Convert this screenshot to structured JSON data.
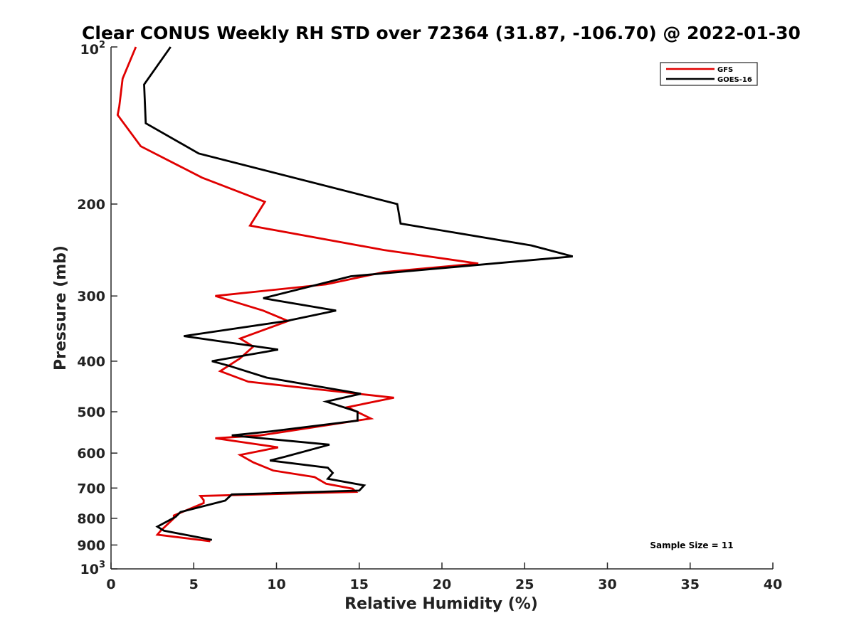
{
  "chart_data": {
    "type": "line",
    "title": "Clear CONUS Weekly RH STD over 72364 (31.87, -106.70) @ 2022-01-30",
    "xlabel": "Relative Humidity (%)",
    "ylabel": "Pressure (mb)",
    "xlim": [
      0,
      40
    ],
    "ylim": [
      100,
      1000
    ],
    "y_scale": "log",
    "y_reversed": true,
    "x_ticks": [
      0,
      5,
      10,
      15,
      20,
      25,
      30,
      35,
      40
    ],
    "x_tick_labels": [
      "0",
      "5",
      "10",
      "15",
      "20",
      "25",
      "30",
      "35",
      "40"
    ],
    "y_ticks": [
      200,
      300,
      400,
      500,
      600,
      700,
      800,
      900
    ],
    "y_tick_labels": [
      "200",
      "300",
      "400",
      "500",
      "600",
      "700",
      "800",
      "900"
    ],
    "y_tick_top": {
      "base": "10",
      "exp": "2"
    },
    "y_tick_bottom": {
      "base": "10",
      "exp": "3"
    },
    "grid": false,
    "legend_position": "top-right",
    "annotation": "Sample Size = 11",
    "series": [
      {
        "name": "GFS",
        "color": "#e00000",
        "points": [
          [
            1.5,
            100
          ],
          [
            0.7,
            115
          ],
          [
            0.5,
            130
          ],
          [
            0.4,
            135
          ],
          [
            1.8,
            155
          ],
          [
            5.5,
            178
          ],
          [
            9.3,
            198
          ],
          [
            8.4,
            220
          ],
          [
            16.5,
            245
          ],
          [
            22.2,
            260
          ],
          [
            16.5,
            270
          ],
          [
            13.0,
            285
          ],
          [
            6.3,
            300
          ],
          [
            9.2,
            320
          ],
          [
            10.7,
            335
          ],
          [
            7.8,
            362
          ],
          [
            8.6,
            375
          ],
          [
            7.8,
            395
          ],
          [
            6.6,
            418
          ],
          [
            8.3,
            438
          ],
          [
            17.1,
            470
          ],
          [
            14.3,
            490
          ],
          [
            15.7,
            515
          ],
          [
            9.0,
            555
          ],
          [
            6.3,
            562
          ],
          [
            10.1,
            585
          ],
          [
            7.8,
            605
          ],
          [
            8.6,
            625
          ],
          [
            9.8,
            648
          ],
          [
            12.3,
            667
          ],
          [
            13.0,
            687
          ],
          [
            14.6,
            702
          ],
          [
            14.8,
            712
          ],
          [
            5.4,
            725
          ],
          [
            5.6,
            738
          ],
          [
            5.6,
            748
          ],
          [
            3.8,
            790
          ],
          [
            3.8,
            800
          ],
          [
            3.0,
            845
          ],
          [
            2.8,
            860
          ],
          [
            6.0,
            885
          ]
        ]
      },
      {
        "name": "GOES-16",
        "color": "#000000",
        "points": [
          [
            3.6,
            100
          ],
          [
            2.0,
            118
          ],
          [
            2.1,
            140
          ],
          [
            5.3,
            160
          ],
          [
            17.3,
            200
          ],
          [
            17.5,
            218
          ],
          [
            25.4,
            240
          ],
          [
            27.9,
            252
          ],
          [
            14.5,
            275
          ],
          [
            9.2,
            303
          ],
          [
            13.6,
            320
          ],
          [
            10.6,
            335
          ],
          [
            4.4,
            358
          ],
          [
            10.1,
            380
          ],
          [
            6.1,
            400
          ],
          [
            7.1,
            408
          ],
          [
            9.4,
            430
          ],
          [
            15.1,
            462
          ],
          [
            13.0,
            478
          ],
          [
            14.9,
            500
          ],
          [
            14.9,
            520
          ],
          [
            9.7,
            545
          ],
          [
            7.3,
            555
          ],
          [
            13.2,
            578
          ],
          [
            10.5,
            610
          ],
          [
            9.6,
            620
          ],
          [
            13.1,
            640
          ],
          [
            13.4,
            655
          ],
          [
            13.1,
            672
          ],
          [
            15.3,
            692
          ],
          [
            15.0,
            708
          ],
          [
            7.3,
            720
          ],
          [
            6.9,
            740
          ],
          [
            4.2,
            778
          ],
          [
            3.9,
            795
          ],
          [
            2.8,
            830
          ],
          [
            3.2,
            845
          ],
          [
            6.1,
            880
          ]
        ]
      }
    ]
  }
}
